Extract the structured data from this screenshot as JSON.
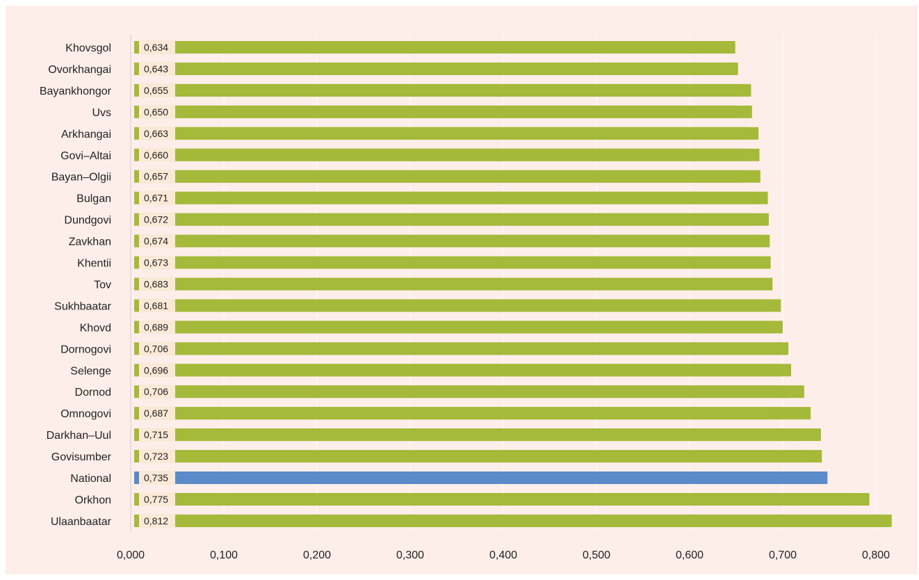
{
  "chart_data": {
    "type": "bar",
    "orientation": "horizontal",
    "categories": [
      "Khovsgol",
      "Ovorkhangai",
      "Bayankhongor",
      "Uvs",
      "Arkhangai",
      "Govi-Altai",
      "Bayan-Olgii",
      "Bulgan",
      "Dundgovi",
      "Zavkhan",
      "Khentii",
      "Tov",
      "Sukhbaatar",
      "Khovd",
      "Dornogovi",
      "Selenge",
      "Dornod",
      "Omnogovi",
      "Darkhan-Uul",
      "Govisumber",
      "National",
      "Orkhon",
      "Ulaanbaatar"
    ],
    "category_labels": [
      "Khovsgol",
      "Ovorkhangai",
      "Bayankhongor",
      "Uvs",
      "Arkhangai",
      "Govi–Altai",
      "Bayan–Olgii",
      "Bulgan",
      "Dundgovi",
      "Zavkhan",
      "Khentii",
      "Tov",
      "Sukhbaatar",
      "Khovd",
      "Dornogovi",
      "Selenge",
      "Dornod",
      "Omnogovi",
      "Darkhan–Uul",
      "Govisumber",
      "National",
      "Orkhon",
      "Ulaanbaatar"
    ],
    "series": [
      {
        "values": [
          0.634,
          0.643,
          0.655,
          0.65,
          0.663,
          0.66,
          0.657,
          0.671,
          0.672,
          0.674,
          0.673,
          0.683,
          0.681,
          0.689,
          0.706,
          0.696,
          0.706,
          0.687,
          0.715,
          0.723,
          0.735,
          0.775,
          0.812
        ],
        "labels": [
          "0,634",
          "0,643",
          "0,655",
          "0,650",
          "0,663",
          "0,660",
          "0,657",
          "0,671",
          "0,672",
          "0,674",
          "0,673",
          "0,683",
          "0,681",
          "0,689",
          "0,706",
          "0,696",
          "0,706",
          "0,687",
          "0,715",
          "0,723",
          "0,735",
          "0,775",
          "0,812"
        ],
        "color": "#a5b93a"
      },
      {
        "values": [
          0.649,
          0.652,
          0.666,
          0.667,
          0.674,
          0.675,
          0.676,
          0.684,
          0.685,
          0.686,
          0.687,
          0.689,
          0.698,
          0.7,
          0.704,
          0.709,
          0.723,
          0.73,
          0.741,
          0.742,
          0.748,
          0.793,
          0.817
        ],
        "color": "#a5b93a"
      }
    ],
    "highlight": {
      "category": "National",
      "color": "#5b8ac9"
    },
    "xlim": [
      0,
      0.82
    ],
    "x_ticks": [
      0,
      0.1,
      0.2,
      0.3,
      0.4,
      0.5,
      0.6,
      0.7,
      0.8
    ],
    "x_tick_labels": [
      "0,000",
      "0,100",
      "0,200",
      "0,300",
      "0,400",
      "0,500",
      "0,600",
      "0,700",
      "0,800"
    ],
    "grid": "vertical",
    "background": "#fdeeea",
    "label_background": "#fbe9d7"
  }
}
